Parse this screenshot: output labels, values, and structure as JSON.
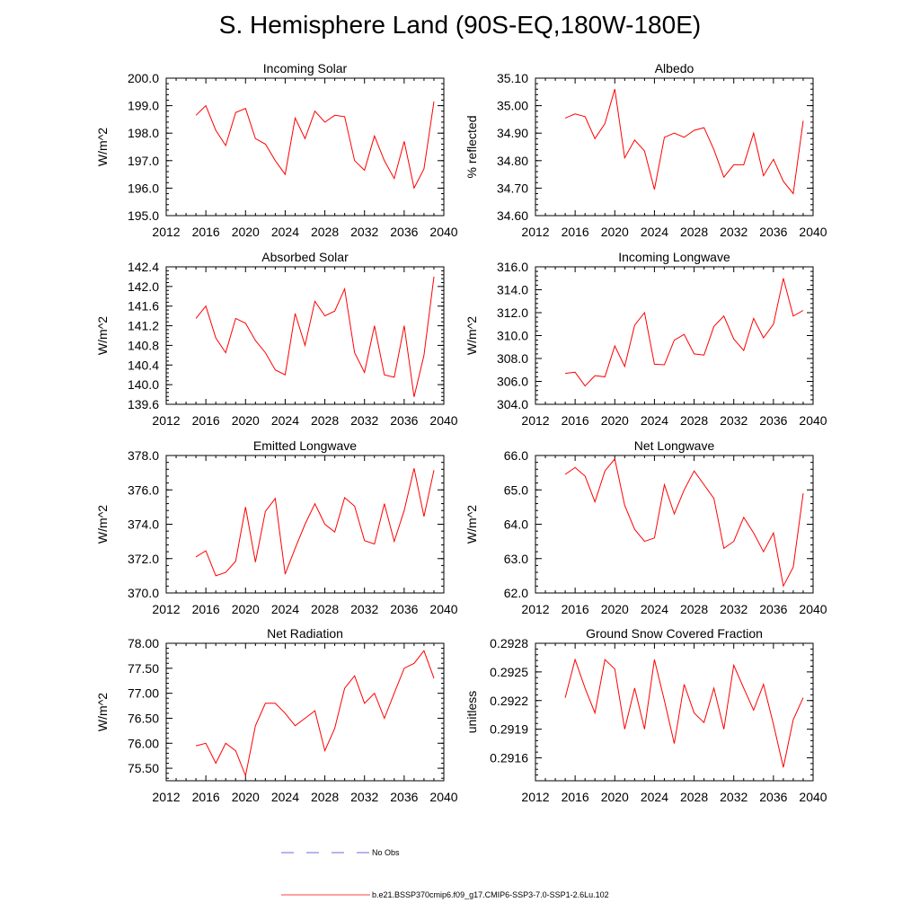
{
  "title": "S. Hemisphere Land (90S-EQ,180W-180E)",
  "legend": [
    {
      "label": "No Obs",
      "color": "#3b3bcc",
      "style": "dashed"
    },
    {
      "label": "b.e21.BSSP370cmip6.f09_g17.CMIP6-SSP3-7.0-SSP1-2.6Lu.102",
      "color": "#ff0000",
      "style": "solid"
    }
  ],
  "chart_data": [
    {
      "type": "line",
      "title": "Incoming Solar",
      "ylabel": "W/m^2",
      "xlim": [
        2012,
        2040
      ],
      "xticks": [
        2012,
        2016,
        2020,
        2024,
        2028,
        2032,
        2036,
        2040
      ],
      "ylim": [
        195.0,
        200.0
      ],
      "yticks": [
        195.0,
        196.0,
        197.0,
        198.0,
        199.0,
        200.0
      ],
      "ytick_labels": [
        "195.0",
        "196.0",
        "197.0",
        "198.0",
        "199.0",
        "200.0"
      ],
      "series": [
        {
          "color": "#ff0000",
          "x": [
            2015,
            2016,
            2017,
            2018,
            2019,
            2020,
            2021,
            2022,
            2023,
            2024,
            2025,
            2026,
            2027,
            2028,
            2029,
            2030,
            2031,
            2032,
            2033,
            2034,
            2035,
            2036,
            2037,
            2038,
            2039
          ],
          "values": [
            198.65,
            199.0,
            198.1,
            197.55,
            198.75,
            198.9,
            197.8,
            197.6,
            197.0,
            196.5,
            198.55,
            197.8,
            198.8,
            198.4,
            198.65,
            198.6,
            197.0,
            196.65,
            197.9,
            197.0,
            196.35,
            197.7,
            196.0,
            196.7,
            199.15
          ]
        }
      ]
    },
    {
      "type": "line",
      "title": "Albedo",
      "ylabel": "% reflected",
      "xlim": [
        2012,
        2040
      ],
      "xticks": [
        2012,
        2016,
        2020,
        2024,
        2028,
        2032,
        2036,
        2040
      ],
      "ylim": [
        34.6,
        35.1
      ],
      "yticks": [
        34.6,
        34.7,
        34.8,
        34.9,
        35.0,
        35.1
      ],
      "ytick_labels": [
        "34.60",
        "34.70",
        "34.80",
        "34.90",
        "35.00",
        "35.10"
      ],
      "series": [
        {
          "color": "#ff0000",
          "x": [
            2015,
            2016,
            2017,
            2018,
            2019,
            2020,
            2021,
            2022,
            2023,
            2024,
            2025,
            2026,
            2027,
            2028,
            2029,
            2030,
            2031,
            2032,
            2033,
            2034,
            2035,
            2036,
            2037,
            2038,
            2039
          ],
          "values": [
            34.955,
            34.97,
            34.96,
            34.88,
            34.935,
            35.06,
            34.81,
            34.875,
            34.835,
            34.695,
            34.885,
            34.9,
            34.885,
            34.91,
            34.92,
            34.84,
            34.74,
            34.785,
            34.785,
            34.9,
            34.745,
            34.805,
            34.725,
            34.68,
            34.945
          ]
        }
      ]
    },
    {
      "type": "line",
      "title": "Absorbed Solar",
      "ylabel": "W/m^2",
      "xlim": [
        2012,
        2040
      ],
      "xticks": [
        2012,
        2016,
        2020,
        2024,
        2028,
        2032,
        2036,
        2040
      ],
      "ylim": [
        139.6,
        142.4
      ],
      "yticks": [
        139.6,
        140.0,
        140.4,
        140.8,
        141.2,
        141.6,
        142.0,
        142.4
      ],
      "ytick_labels": [
        "139.6",
        "140.0",
        "140.4",
        "140.8",
        "141.2",
        "141.6",
        "142.0",
        "142.4"
      ],
      "series": [
        {
          "color": "#ff0000",
          "x": [
            2015,
            2016,
            2017,
            2018,
            2019,
            2020,
            2021,
            2022,
            2023,
            2024,
            2025,
            2026,
            2027,
            2028,
            2029,
            2030,
            2031,
            2032,
            2033,
            2034,
            2035,
            2036,
            2037,
            2038,
            2039
          ],
          "values": [
            141.35,
            141.6,
            140.95,
            140.65,
            141.35,
            141.25,
            140.9,
            140.65,
            140.3,
            140.2,
            141.45,
            140.8,
            141.7,
            141.4,
            141.5,
            141.95,
            140.65,
            140.25,
            141.2,
            140.2,
            140.15,
            141.2,
            139.75,
            140.6,
            142.2
          ]
        }
      ]
    },
    {
      "type": "line",
      "title": "Incoming Longwave",
      "ylabel": "W/m^2",
      "xlim": [
        2012,
        2040
      ],
      "xticks": [
        2012,
        2016,
        2020,
        2024,
        2028,
        2032,
        2036,
        2040
      ],
      "ylim": [
        304.0,
        316.0
      ],
      "yticks": [
        304.0,
        306.0,
        308.0,
        310.0,
        312.0,
        314.0,
        316.0
      ],
      "ytick_labels": [
        "304.0",
        "306.0",
        "308.0",
        "310.0",
        "312.0",
        "314.0",
        "316.0"
      ],
      "series": [
        {
          "color": "#ff0000",
          "x": [
            2015,
            2016,
            2017,
            2018,
            2019,
            2020,
            2021,
            2022,
            2023,
            2024,
            2025,
            2026,
            2027,
            2028,
            2029,
            2030,
            2031,
            2032,
            2033,
            2034,
            2035,
            2036,
            2037,
            2038,
            2039
          ],
          "values": [
            306.7,
            306.8,
            305.6,
            306.5,
            306.4,
            309.1,
            307.3,
            310.9,
            312.0,
            307.5,
            307.45,
            309.6,
            310.1,
            308.4,
            308.3,
            310.8,
            311.7,
            309.7,
            308.7,
            311.5,
            309.8,
            311.0,
            315.0,
            311.7,
            312.2
          ]
        }
      ]
    },
    {
      "type": "line",
      "title": "Emitted Longwave",
      "ylabel": "W/m^2",
      "xlim": [
        2012,
        2040
      ],
      "xticks": [
        2012,
        2016,
        2020,
        2024,
        2028,
        2032,
        2036,
        2040
      ],
      "ylim": [
        370.0,
        378.0
      ],
      "yticks": [
        370.0,
        372.0,
        374.0,
        376.0,
        378.0
      ],
      "ytick_labels": [
        "370.0",
        "372.0",
        "374.0",
        "376.0",
        "378.0"
      ],
      "series": [
        {
          "color": "#ff0000",
          "x": [
            2015,
            2016,
            2017,
            2018,
            2019,
            2020,
            2021,
            2022,
            2023,
            2024,
            2025,
            2026,
            2027,
            2028,
            2029,
            2030,
            2031,
            2032,
            2033,
            2034,
            2035,
            2036,
            2037,
            2038,
            2039
          ],
          "values": [
            372.1,
            372.45,
            371.0,
            371.2,
            371.85,
            375.0,
            371.8,
            374.75,
            375.5,
            371.1,
            372.6,
            374.0,
            375.2,
            374.0,
            373.55,
            375.55,
            375.05,
            373.05,
            372.85,
            375.2,
            373.0,
            374.8,
            377.25,
            374.45,
            377.15
          ]
        }
      ]
    },
    {
      "type": "line",
      "title": "Net Longwave",
      "ylabel": "W/m^2",
      "xlim": [
        2012,
        2040
      ],
      "xticks": [
        2012,
        2016,
        2020,
        2024,
        2028,
        2032,
        2036,
        2040
      ],
      "ylim": [
        62.0,
        66.0
      ],
      "yticks": [
        62.0,
        63.0,
        64.0,
        65.0,
        66.0
      ],
      "ytick_labels": [
        "62.0",
        "63.0",
        "64.0",
        "65.0",
        "66.0"
      ],
      "series": [
        {
          "color": "#ff0000",
          "x": [
            2015,
            2016,
            2017,
            2018,
            2019,
            2020,
            2021,
            2022,
            2023,
            2024,
            2025,
            2026,
            2027,
            2028,
            2029,
            2030,
            2031,
            2032,
            2033,
            2034,
            2035,
            2036,
            2037,
            2038,
            2039
          ],
          "values": [
            65.45,
            65.65,
            65.4,
            64.65,
            65.55,
            65.9,
            64.55,
            63.85,
            63.5,
            63.6,
            65.15,
            64.3,
            65.0,
            65.55,
            65.15,
            64.75,
            63.3,
            63.5,
            64.2,
            63.75,
            63.2,
            63.75,
            62.2,
            62.75,
            64.9
          ]
        }
      ]
    },
    {
      "type": "line",
      "title": "Net Radiation",
      "ylabel": "W/m^2",
      "xlim": [
        2012,
        2040
      ],
      "xticks": [
        2012,
        2016,
        2020,
        2024,
        2028,
        2032,
        2036,
        2040
      ],
      "ylim": [
        75.25,
        78.0
      ],
      "yticks": [
        75.5,
        76.0,
        76.5,
        77.0,
        77.5,
        78.0
      ],
      "ytick_labels": [
        "75.50",
        "76.00",
        "76.50",
        "77.00",
        "77.50",
        "78.00"
      ],
      "series": [
        {
          "color": "#ff0000",
          "x": [
            2015,
            2016,
            2017,
            2018,
            2019,
            2020,
            2021,
            2022,
            2023,
            2024,
            2025,
            2026,
            2027,
            2028,
            2029,
            2030,
            2031,
            2032,
            2033,
            2034,
            2035,
            2036,
            2037,
            2038,
            2039
          ],
          "values": [
            75.95,
            76.0,
            75.6,
            76.0,
            75.85,
            75.35,
            76.35,
            76.8,
            76.8,
            76.6,
            76.35,
            76.5,
            76.65,
            75.85,
            76.3,
            77.1,
            77.35,
            76.8,
            77.0,
            76.5,
            77.0,
            77.5,
            77.6,
            77.85,
            77.3
          ]
        }
      ]
    },
    {
      "type": "line",
      "title": "Ground Snow Covered Fraction",
      "ylabel": "unitless",
      "xlim": [
        2012,
        2040
      ],
      "xticks": [
        2012,
        2016,
        2020,
        2024,
        2028,
        2032,
        2036,
        2040
      ],
      "ylim": [
        0.29136,
        0.2928
      ],
      "yticks": [
        0.2916,
        0.2919,
        0.2922,
        0.2925,
        0.2928
      ],
      "ytick_labels": [
        "0.2916",
        "0.2919",
        "0.2922",
        "0.2925",
        "0.2928"
      ],
      "series": [
        {
          "color": "#ff0000",
          "x": [
            2015,
            2016,
            2017,
            2018,
            2019,
            2020,
            2021,
            2022,
            2023,
            2024,
            2025,
            2026,
            2027,
            2028,
            2029,
            2030,
            2031,
            2032,
            2033,
            2034,
            2035,
            2036,
            2037,
            2038,
            2039
          ],
          "values": [
            0.29223,
            0.29263,
            0.29233,
            0.29207,
            0.29263,
            0.29253,
            0.2919,
            0.29233,
            0.2919,
            0.29263,
            0.2922,
            0.29175,
            0.29237,
            0.29207,
            0.29197,
            0.29233,
            0.2919,
            0.29257,
            0.29233,
            0.2921,
            0.29237,
            0.29195,
            0.2915,
            0.292,
            0.29223
          ]
        }
      ]
    }
  ]
}
